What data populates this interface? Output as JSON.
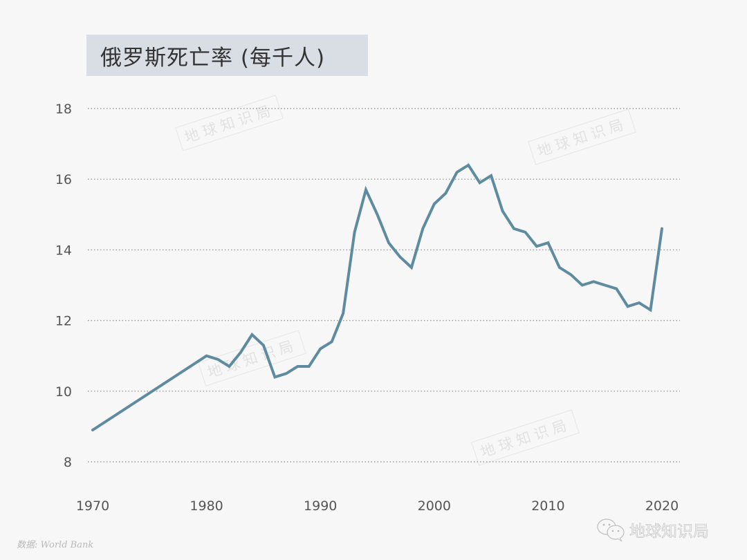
{
  "title": "俄罗斯死亡率 (每千人)",
  "source": "数据: World Bank",
  "brand": {
    "name": "地球知识局",
    "icon": "wechat-icon"
  },
  "watermark": "地球知识局",
  "colors": {
    "line": "#5f8ba0",
    "title_bg": "#d8dee3",
    "background": "#f7f7f7",
    "grid": "#999999"
  },
  "chart_data": {
    "type": "line",
    "title": "俄罗斯死亡率 (每千人)",
    "xlabel": "",
    "ylabel": "",
    "xlim": [
      1970,
      2020
    ],
    "ylim": [
      8,
      18
    ],
    "yticks": [
      8,
      10,
      12,
      14,
      16,
      18
    ],
    "xticks": [
      1970,
      1980,
      1990,
      2000,
      2010,
      2020
    ],
    "grid": "horizontal dotted",
    "legend": null,
    "series": [
      {
        "name": "死亡率",
        "x": [
          1970,
          1980,
          1981,
          1982,
          1983,
          1984,
          1985,
          1986,
          1987,
          1988,
          1989,
          1990,
          1991,
          1992,
          1993,
          1994,
          1995,
          1996,
          1997,
          1998,
          1999,
          2000,
          2001,
          2002,
          2003,
          2004,
          2005,
          2006,
          2007,
          2008,
          2009,
          2010,
          2011,
          2012,
          2013,
          2014,
          2015,
          2016,
          2017,
          2018,
          2019,
          2020
        ],
        "values": [
          8.9,
          11.0,
          10.9,
          10.7,
          11.1,
          11.6,
          11.3,
          10.4,
          10.5,
          10.7,
          10.7,
          11.2,
          11.4,
          12.2,
          14.5,
          15.7,
          15.0,
          14.2,
          13.8,
          13.5,
          14.6,
          15.3,
          15.6,
          16.2,
          16.4,
          15.9,
          16.1,
          15.1,
          14.6,
          14.5,
          14.1,
          14.2,
          13.5,
          13.3,
          13.0,
          13.1,
          13.0,
          12.9,
          12.4,
          12.5,
          12.3,
          14.6
        ]
      }
    ]
  }
}
